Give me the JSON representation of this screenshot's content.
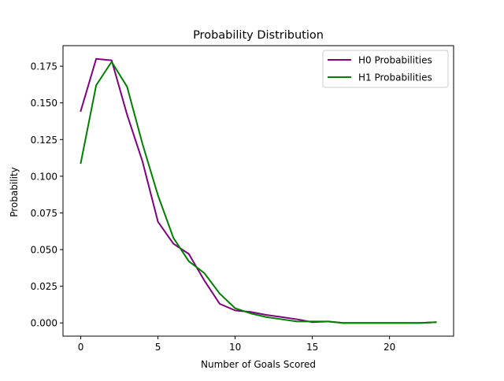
{
  "chart_data": {
    "type": "line",
    "title": "Probability Distribution",
    "xlabel": "Number of Goals Scored",
    "ylabel": "Probability",
    "xlim": [
      -1.15,
      24.15
    ],
    "ylim": [
      -0.009,
      0.189
    ],
    "xticks": [
      0,
      5,
      10,
      15,
      20
    ],
    "xtick_labels": [
      "0",
      "5",
      "10",
      "15",
      "20"
    ],
    "yticks": [
      0.0,
      0.025,
      0.05,
      0.075,
      0.1,
      0.125,
      0.15,
      0.175
    ],
    "ytick_labels": [
      "0.000",
      "0.025",
      "0.050",
      "0.075",
      "0.100",
      "0.125",
      "0.150",
      "0.175"
    ],
    "grid": false,
    "legend_position": "top-right",
    "series": [
      {
        "name": "H0 Probabilities",
        "color": "#800080",
        "x": [
          0,
          1,
          2,
          3,
          4,
          5,
          6,
          7,
          8,
          9,
          10,
          11,
          12,
          13,
          14,
          15,
          16,
          17,
          18,
          19,
          20,
          21,
          22,
          23
        ],
        "y": [
          0.1445,
          0.18,
          0.179,
          0.142,
          0.11,
          0.069,
          0.054,
          0.047,
          0.029,
          0.013,
          0.0085,
          0.0075,
          0.0055,
          0.004,
          0.0025,
          0.0005,
          0.001,
          0.0,
          0.0,
          0.0,
          0.0,
          0.0,
          0.0,
          0.0005
        ]
      },
      {
        "name": "H1 Probabilities",
        "color": "#008000",
        "x": [
          0,
          1,
          2,
          3,
          4,
          5,
          6,
          7,
          8,
          9,
          10,
          11,
          12,
          13,
          14,
          15,
          16,
          17,
          18,
          19,
          20,
          21,
          22,
          23
        ],
        "y": [
          0.109,
          0.162,
          0.178,
          0.161,
          0.122,
          0.087,
          0.058,
          0.042,
          0.034,
          0.02,
          0.01,
          0.0065,
          0.004,
          0.0025,
          0.001,
          0.001,
          0.001,
          0.0,
          0.0,
          0.0,
          0.0,
          0.0,
          0.0,
          0.0005
        ]
      }
    ]
  }
}
